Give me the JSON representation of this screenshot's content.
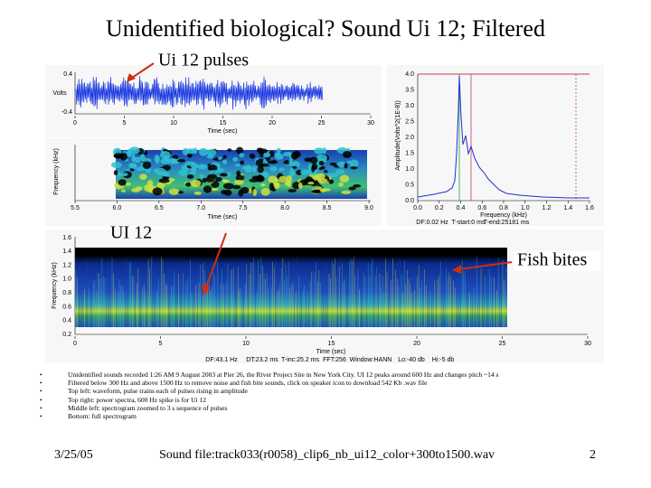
{
  "title": "Unidentified biological? Sound Ui 12; Filtered",
  "annotations": {
    "pulses": "Ui 12 pulses",
    "ui12": "UI 12",
    "fish": "Fish bites"
  },
  "waveform": {
    "y_ticks": [
      "0.4",
      "-0.4"
    ],
    "y_label": "Volts",
    "x_ticks": [
      "0",
      "5",
      "10",
      "15",
      "20",
      "25",
      "30"
    ],
    "x_label": "Time (sec)"
  },
  "zoom_spectrogram": {
    "y_label": "Frequency (kHz)",
    "x_ticks": [
      "5.5",
      "6.0",
      "6.5",
      "7.0",
      "7.5",
      "8.0",
      "8.5",
      "9.0"
    ],
    "x_label": "Time (sec)"
  },
  "power_spectrum": {
    "y_label": "Amplitude(Volts^2(1E-8))",
    "y_ticks": [
      "0.0",
      "0.5",
      "1.0",
      "1.5",
      "2.0",
      "2.5",
      "3.0",
      "3.5",
      "4.0"
    ],
    "x_ticks": [
      "0.0",
      "0.2",
      "0.4",
      "0.6",
      "0.8",
      "1.0",
      "1.2",
      "1.4",
      "1.6"
    ],
    "x_label": "Frequency (kHz)",
    "footer": [
      "DF:0.02 Hz",
      "T-start:0 ms",
      "T-end:25181 ms"
    ]
  },
  "full_spectrogram": {
    "y_label": "Frequency (kHz)",
    "y_ticks": [
      "0.2",
      "0.4",
      "0.6",
      "0.8",
      "1.0",
      "1.2",
      "1.4",
      "1.6"
    ],
    "x_ticks": [
      "0",
      "5",
      "10",
      "15",
      "20",
      "25",
      "30"
    ],
    "x_label": "Time (sec)",
    "footer": [
      "DF:43.1 Hz",
      "DT:23.2 ms",
      "T-inc:25.2 ms",
      "FFT:256",
      "Window:HANN",
      "Lo:-40 db",
      "Hi:-5 db"
    ]
  },
  "bullets": [
    "Unidentified sounds recorded 1:26 AM 9 August 2003 at Pier 26, the River Project Site in New York City. UI 12 peaks around 600 Hz and changes pitch ~14 s",
    "Filtered below 300 Hz and above 1500 Hz to remove noise and fish bite sounds, click on speaker icon to download 542 Kb .wav file",
    "Top left: waveform, pulse trains each of pulses rising in amplitude",
    "Top right: power spectra, 600 Hz spike is for Ui 12",
    "Middle left: spectrogram zoomed to 3 s sequence of pulses",
    "Bottom: full spectrogram"
  ],
  "footer": {
    "date": "3/25/05",
    "file": "Sound file:track033(r0058)_clip6_nb_ui12_color+300to1500.wav",
    "page": "2"
  }
}
